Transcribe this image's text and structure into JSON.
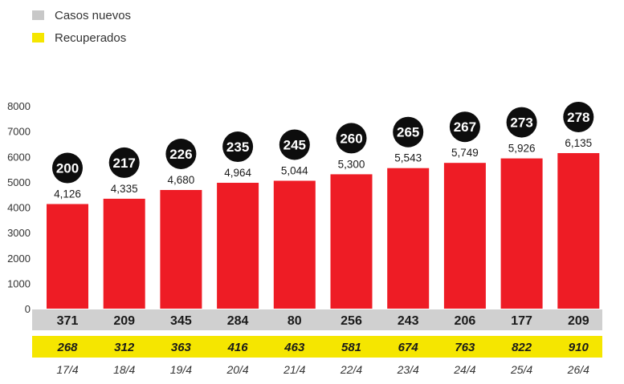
{
  "legend": [
    {
      "label": "Casos nuevos",
      "color": "#c8c8c8"
    },
    {
      "label": "Recuperados",
      "color": "#f5e600"
    }
  ],
  "colors": {
    "bar": "#ee1c25",
    "circle": "#0d0d0d",
    "new_band": "#d0d0d0",
    "rec_band": "#f5e600"
  },
  "chart_data": {
    "type": "bar",
    "categories": [
      "17/4",
      "18/4",
      "19/4",
      "20/4",
      "21/4",
      "22/4",
      "23/4",
      "24/4",
      "25/4",
      "26/4"
    ],
    "values": [
      4126,
      4335,
      4680,
      4964,
      5044,
      5300,
      5543,
      5749,
      5926,
      6135
    ],
    "value_labels": [
      "4,126",
      "4,335",
      "4,680",
      "4,964",
      "5,044",
      "5,300",
      "5,543",
      "5,749",
      "5,926",
      "6,135"
    ],
    "circle_values": [
      200,
      217,
      226,
      235,
      245,
      260,
      265,
      267,
      273,
      278
    ],
    "casos_nuevos": [
      371,
      209,
      345,
      284,
      80,
      256,
      243,
      206,
      177,
      209
    ],
    "recuperados": [
      268,
      312,
      363,
      416,
      463,
      581,
      674,
      763,
      822,
      910
    ],
    "ylim": [
      0,
      8000
    ],
    "yticks": [
      0,
      1000,
      2000,
      3000,
      4000,
      5000,
      6000,
      7000,
      8000
    ],
    "grid": false,
    "legend_position": "top-left"
  }
}
